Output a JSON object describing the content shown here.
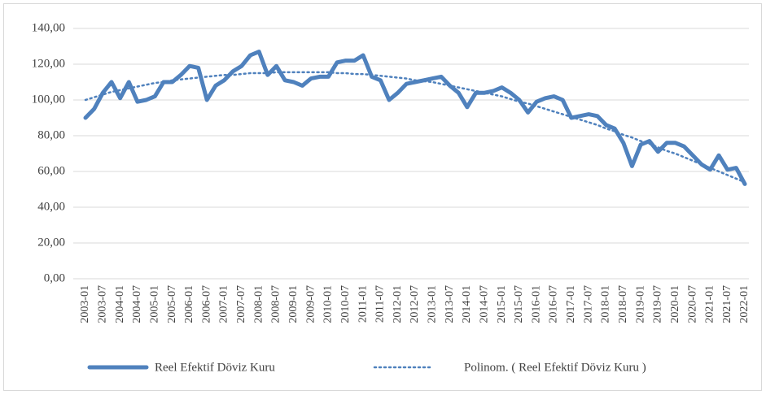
{
  "chart_data": {
    "type": "line",
    "categories": [
      "2003-01",
      null,
      "2003-07",
      null,
      "2004-01",
      null,
      "2004-07",
      null,
      "2005-01",
      null,
      "2005-07",
      null,
      "2006-01",
      null,
      "2006-07",
      null,
      "2007-01",
      null,
      "2007-07",
      null,
      "2008-01",
      null,
      "2008-07",
      null,
      "2009-01",
      null,
      "2009-07",
      null,
      "2010-01",
      null,
      "2010-07",
      null,
      "2011-01",
      null,
      "2011-07",
      null,
      "2012-01",
      null,
      "2012-07",
      null,
      "2013-01",
      null,
      "2013-07",
      null,
      "2014-01",
      null,
      "2014-07",
      null,
      "2015-01",
      null,
      "2015-07",
      null,
      "2016-01",
      null,
      "2016-07",
      null,
      "2017-01",
      null,
      "2017-07",
      null,
      "2018-01",
      null,
      "2018-07",
      null,
      "2019-01",
      null,
      "2019-07",
      null,
      "2020-01",
      null,
      "2020-07",
      null,
      "2021-01",
      null,
      "2021-07",
      null,
      "2022-01"
    ],
    "series": [
      {
        "name": "Reel Efektif Döviz Kuru",
        "color": "#4f81bd",
        "dash": "solid",
        "values": [
          90,
          95,
          104,
          110,
          101,
          110,
          99,
          100,
          102,
          110,
          110,
          114,
          119,
          118,
          100,
          108,
          111,
          116,
          119,
          125,
          127,
          114,
          119,
          111,
          110,
          108,
          112,
          113,
          113,
          121,
          122,
          122,
          125,
          113,
          111,
          100,
          104,
          109,
          110,
          111,
          112,
          113,
          108,
          104,
          96,
          104,
          104,
          105,
          107,
          104,
          100,
          93,
          99,
          101,
          102,
          100,
          90,
          91,
          92,
          91,
          86,
          84,
          76,
          63,
          75,
          77,
          71,
          76,
          76,
          74,
          69,
          64,
          61,
          69,
          61,
          62,
          53
        ]
      },
      {
        "name": "Polinom. ( Reel Efektif Döviz Kuru )",
        "color": "#4f81bd",
        "dash": "dotted",
        "values": [
          100,
          101.5,
          103,
          104.5,
          105.5,
          106.5,
          107.5,
          108.5,
          109.5,
          110,
          111,
          111.5,
          112,
          112.5,
          113,
          113.5,
          114,
          114,
          114.5,
          115,
          115,
          115,
          115.5,
          115.5,
          115.5,
          115.5,
          115.5,
          115.5,
          115.5,
          115,
          115,
          114.5,
          114.5,
          114,
          113.5,
          113,
          112.5,
          112,
          111,
          110.5,
          110,
          109,
          108,
          107,
          106,
          105,
          104,
          103,
          102,
          100.5,
          99,
          98,
          96.5,
          95,
          93.5,
          92,
          90.5,
          89,
          87.5,
          86,
          84,
          82.5,
          80.5,
          79,
          77,
          75.5,
          73.5,
          71.5,
          70,
          68,
          66,
          64,
          62,
          60,
          58,
          56,
          54
        ]
      }
    ],
    "ylim": [
      0,
      140
    ],
    "yticks": [
      {
        "value": 0,
        "label": "0,00"
      },
      {
        "value": 20,
        "label": "20,00"
      },
      {
        "value": 40,
        "label": "40,00"
      },
      {
        "value": 60,
        "label": "60,00"
      },
      {
        "value": 80,
        "label": "80,00"
      },
      {
        "value": 100,
        "label": "100,00"
      },
      {
        "value": 120,
        "label": "120,00"
      },
      {
        "value": 140,
        "label": "140,00"
      }
    ],
    "grid": true,
    "legend": "bottom"
  }
}
